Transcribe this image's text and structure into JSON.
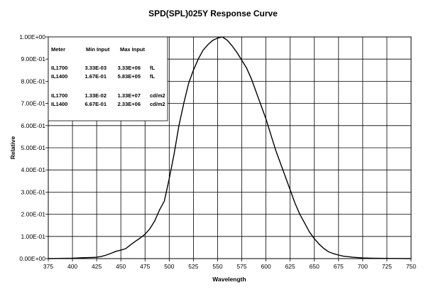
{
  "chart_data": {
    "type": "line",
    "title": "SPD(SPL)025Y Response Curve",
    "xlabel": "Wavelength",
    "ylabel": "Relative",
    "xlim": [
      375,
      750
    ],
    "ylim": [
      0,
      1
    ],
    "x_ticks": [
      375,
      400,
      425,
      450,
      475,
      500,
      525,
      550,
      575,
      600,
      625,
      650,
      675,
      700,
      725,
      750
    ],
    "y_ticks": [
      0,
      0.1,
      0.2,
      0.3,
      0.4,
      0.5,
      0.6,
      0.7,
      0.8,
      0.9,
      1.0
    ],
    "y_tick_labels": [
      "0.00E+00",
      "1.00E-01",
      "2.00E-01",
      "3.00E-01",
      "4.00E-01",
      "5.00E-01",
      "6.00E-01",
      "7.00E-01",
      "8.00E-01",
      "9.00E-01",
      "1.00E+00"
    ],
    "grid": true,
    "legend": "none",
    "series": [
      {
        "x": [
          375,
          400,
          410,
          420,
          425,
          430,
          435,
          440,
          445,
          450,
          455,
          460,
          465,
          470,
          475,
          480,
          485,
          490,
          495,
          500,
          505,
          510,
          515,
          520,
          525,
          530,
          535,
          540,
          545,
          550,
          555,
          560,
          565,
          570,
          575,
          580,
          585,
          590,
          595,
          600,
          605,
          610,
          615,
          620,
          625,
          630,
          635,
          640,
          645,
          650,
          655,
          660,
          665,
          670,
          675,
          680,
          690,
          700,
          710,
          725,
          750
        ],
        "values": [
          0.0,
          0.002,
          0.004,
          0.005,
          0.006,
          0.01,
          0.016,
          0.024,
          0.033,
          0.038,
          0.045,
          0.062,
          0.078,
          0.093,
          0.11,
          0.135,
          0.17,
          0.22,
          0.26,
          0.36,
          0.47,
          0.6,
          0.7,
          0.79,
          0.85,
          0.9,
          0.94,
          0.965,
          0.985,
          0.995,
          1.0,
          0.985,
          0.96,
          0.93,
          0.895,
          0.86,
          0.81,
          0.75,
          0.69,
          0.63,
          0.56,
          0.49,
          0.43,
          0.37,
          0.31,
          0.25,
          0.2,
          0.16,
          0.12,
          0.09,
          0.065,
          0.045,
          0.03,
          0.022,
          0.016,
          0.011,
          0.006,
          0.003,
          0.002,
          0.001,
          0.0
        ]
      }
    ],
    "table": {
      "headers": [
        "Meter",
        "Min Input",
        "Max Input",
        ""
      ],
      "groups": [
        [
          [
            "IL1700",
            "3.33E-03",
            "3.33E+06",
            "fL"
          ],
          [
            "IL1400",
            "1.67E-01",
            "5.83E+05",
            "fL"
          ]
        ],
        [
          [
            "IL1700",
            "1.33E-02",
            "1.33E+07",
            "cd/m2"
          ],
          [
            "IL1400",
            "6.67E-01",
            "2.33E+06",
            "cd/m2"
          ]
        ]
      ]
    }
  }
}
